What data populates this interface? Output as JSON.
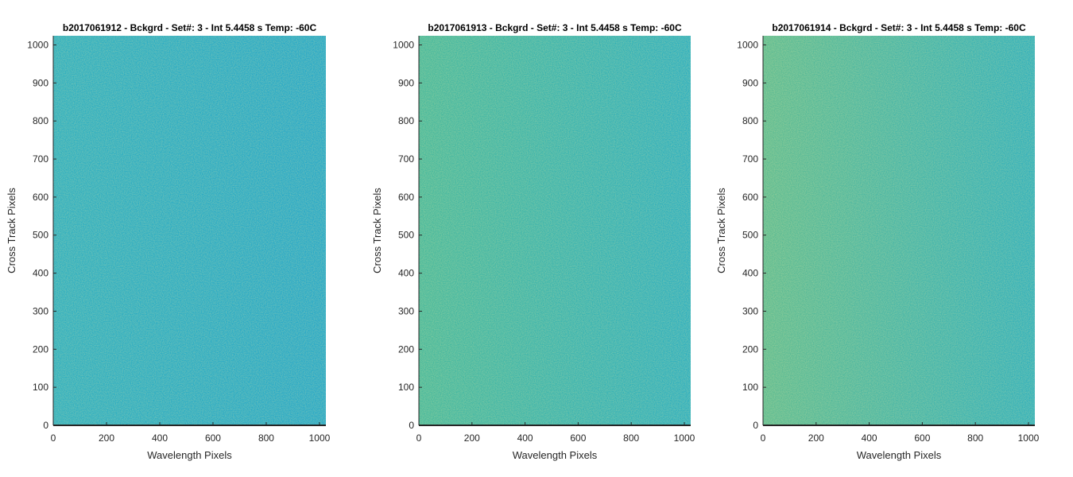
{
  "figure": {
    "panel_count": 3
  },
  "chart_data": [
    {
      "type": "heatmap",
      "title": "b2017061912 - Bckgrd - Set#: 3 - Int 5.4458 s Temp: -60C",
      "xlabel": "Wavelength Pixels",
      "ylabel": "Cross Track Pixels",
      "xlim": [
        0,
        1024
      ],
      "ylim": [
        0,
        1024
      ],
      "xticks": [
        0,
        200,
        400,
        600,
        800,
        1000
      ],
      "yticks": [
        0,
        100,
        200,
        300,
        400,
        500,
        600,
        700,
        800,
        900,
        1000
      ],
      "colormap": "parula",
      "color_left": "#1aa8c4",
      "color_right": "#11a0cd",
      "noise": "fine speckle",
      "grid": false
    },
    {
      "type": "heatmap",
      "title": "b2017061913 - Bckgrd - Set#: 3 - Int 5.4458 s Temp: -60C",
      "xlabel": "Wavelength Pixels",
      "ylabel": "Cross Track Pixels",
      "xlim": [
        0,
        1024
      ],
      "ylim": [
        0,
        1024
      ],
      "xticks": [
        0,
        200,
        400,
        600,
        800,
        1000
      ],
      "yticks": [
        0,
        100,
        200,
        300,
        400,
        500,
        600,
        700,
        800,
        900,
        1000
      ],
      "colormap": "parula",
      "color_left": "#36b39c",
      "color_right": "#19a8c3",
      "noise": "fine speckle",
      "grid": false
    },
    {
      "type": "heatmap",
      "title": "b2017061914 - Bckgrd - Set#: 3 - Int 5.4458 s Temp: -60C",
      "xlabel": "Wavelength Pixels",
      "ylabel": "Cross Track Pixels",
      "xlim": [
        0,
        1024
      ],
      "ylim": [
        0,
        1024
      ],
      "xticks": [
        0,
        200,
        400,
        600,
        800,
        1000
      ],
      "yticks": [
        0,
        100,
        200,
        300,
        400,
        500,
        600,
        700,
        800,
        900,
        1000
      ],
      "colormap": "parula",
      "color_left": "#4eb690",
      "color_right": "#1ca9bf",
      "noise": "fine speckle",
      "grid": false
    }
  ]
}
